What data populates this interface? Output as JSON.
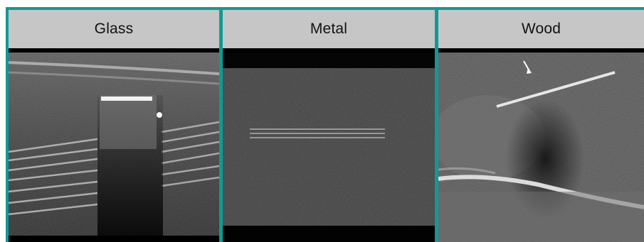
{
  "panels": [
    {
      "label": "Glass"
    },
    {
      "label": "Metal"
    },
    {
      "label": "Wood"
    }
  ],
  "colors": {
    "border": "#0f9a96",
    "header_bg": "#c6c6c6"
  }
}
